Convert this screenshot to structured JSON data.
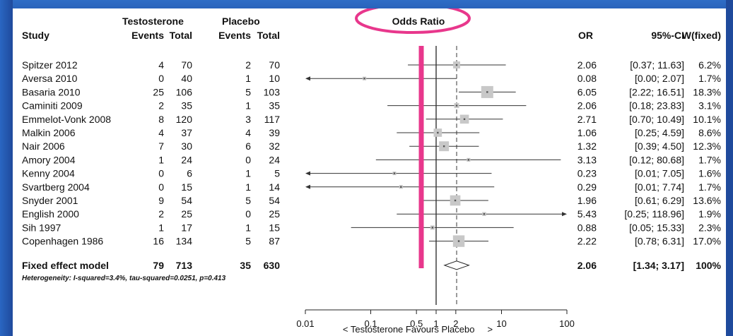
{
  "chart_data": {
    "type": "forest",
    "scale": "log",
    "xlim": [
      0.01,
      100
    ],
    "ticks": [
      "0.01",
      "0.1",
      "0.5",
      "1",
      "2",
      "10",
      "100"
    ],
    "tick_values": [
      0.01,
      0.1,
      0.5,
      1,
      2,
      10,
      100
    ],
    "header": {
      "group1": "Testosterone",
      "group2": "Placebo",
      "study": "Study",
      "events": "Events",
      "total": "Total",
      "plot_title": "Odds Ratio",
      "or": "OR",
      "ci": "95%-CI",
      "w": "W(fixed)"
    },
    "studies": [
      {
        "name": "Spitzer 2012",
        "te": "4",
        "tt": "70",
        "pe": "2",
        "pt": "70",
        "or": 2.06,
        "lo": 0.37,
        "hi": 11.63,
        "or_text": "2.06",
        "ci_text": "[0.37; 11.63]",
        "w_text": "6.2%",
        "weight": 6.2
      },
      {
        "name": "Aversa 2010",
        "te": "0",
        "tt": "40",
        "pe": "1",
        "pt": "10",
        "or": 0.08,
        "lo": 0.0,
        "hi": 2.07,
        "or_text": "0.08",
        "ci_text": "[0.00; 2.07]",
        "w_text": "1.7%",
        "weight": 1.7
      },
      {
        "name": "Basaria 2010",
        "te": "25",
        "tt": "106",
        "pe": "5",
        "pt": "103",
        "or": 6.05,
        "lo": 2.22,
        "hi": 16.51,
        "or_text": "6.05",
        "ci_text": "[2.22; 16.51]",
        "w_text": "18.3%",
        "weight": 18.3
      },
      {
        "name": "Caminiti 2009",
        "te": "2",
        "tt": "35",
        "pe": "1",
        "pt": "35",
        "or": 2.06,
        "lo": 0.18,
        "hi": 23.83,
        "or_text": "2.06",
        "ci_text": "[0.18; 23.83]",
        "w_text": "3.1%",
        "weight": 3.1
      },
      {
        "name": "Emmelot-Vonk 2008",
        "te": "8",
        "tt": "120",
        "pe": "3",
        "pt": "117",
        "or": 2.71,
        "lo": 0.7,
        "hi": 10.49,
        "or_text": "2.71",
        "ci_text": "[0.70; 10.49]",
        "w_text": "10.1%",
        "weight": 10.1
      },
      {
        "name": "Malkin 2006",
        "te": "4",
        "tt": "37",
        "pe": "4",
        "pt": "39",
        "or": 1.06,
        "lo": 0.25,
        "hi": 4.59,
        "or_text": "1.06",
        "ci_text": "[0.25; 4.59]",
        "w_text": "8.6%",
        "weight": 8.6
      },
      {
        "name": "Nair 2006",
        "te": "7",
        "tt": "30",
        "pe": "6",
        "pt": "32",
        "or": 1.32,
        "lo": 0.39,
        "hi": 4.5,
        "or_text": "1.32",
        "ci_text": "[0.39; 4.50]",
        "w_text": "12.3%",
        "weight": 12.3
      },
      {
        "name": "Amory 2004",
        "te": "1",
        "tt": "24",
        "pe": "0",
        "pt": "24",
        "or": 3.13,
        "lo": 0.12,
        "hi": 80.68,
        "or_text": "3.13",
        "ci_text": "[0.12; 80.68]",
        "w_text": "1.7%",
        "weight": 1.7
      },
      {
        "name": "Kenny 2004",
        "te": "0",
        "tt": "6",
        "pe": "1",
        "pt": "5",
        "or": 0.23,
        "lo": 0.01,
        "hi": 7.05,
        "or_text": "0.23",
        "ci_text": "[0.01; 7.05]",
        "w_text": "1.6%",
        "weight": 1.6
      },
      {
        "name": "Svartberg 2004",
        "te": "0",
        "tt": "15",
        "pe": "1",
        "pt": "14",
        "or": 0.29,
        "lo": 0.01,
        "hi": 7.74,
        "or_text": "0.29",
        "ci_text": "[0.01; 7.74]",
        "w_text": "1.7%",
        "weight": 1.7
      },
      {
        "name": "Snyder 2001",
        "te": "9",
        "tt": "54",
        "pe": "5",
        "pt": "54",
        "or": 1.96,
        "lo": 0.61,
        "hi": 6.29,
        "or_text": "1.96",
        "ci_text": "[0.61; 6.29]",
        "w_text": "13.6%",
        "weight": 13.6
      },
      {
        "name": "English 2000",
        "te": "2",
        "tt": "25",
        "pe": "0",
        "pt": "25",
        "or": 5.43,
        "lo": 0.25,
        "hi": 118.96,
        "or_text": "5.43",
        "ci_text": "[0.25; 118.96]",
        "w_text": "1.9%",
        "weight": 1.9
      },
      {
        "name": "Sih 1997",
        "te": "1",
        "tt": "17",
        "pe": "1",
        "pt": "15",
        "or": 0.88,
        "lo": 0.05,
        "hi": 15.33,
        "or_text": "0.88",
        "ci_text": "[0.05; 15.33]",
        "w_text": "2.3%",
        "weight": 2.3
      },
      {
        "name": "Copenhagen 1986",
        "te": "16",
        "tt": "134",
        "pe": "5",
        "pt": "87",
        "or": 2.22,
        "lo": 0.78,
        "hi": 6.31,
        "or_text": "2.22",
        "ci_text": "[0.78; 6.31]",
        "w_text": "17.0%",
        "weight": 17.0
      }
    ],
    "pooled": {
      "name": "Fixed effect model",
      "te": "79",
      "tt": "713",
      "pe": "35",
      "pt": "630",
      "or": 2.06,
      "lo": 1.34,
      "hi": 3.17,
      "or_text": "2.06",
      "ci_text": "[1.34; 3.17]",
      "w_text": "100%"
    },
    "heterogeneity": "Heterogeneity: I-squared=3.4%, tau-squared=0.0251, p=0.413",
    "xlabel": "< Testosterone Favours Placebo     >",
    "annotation_color": "#e8378c",
    "box_color": "#c8c8c8",
    "marker_color": "#555555"
  }
}
